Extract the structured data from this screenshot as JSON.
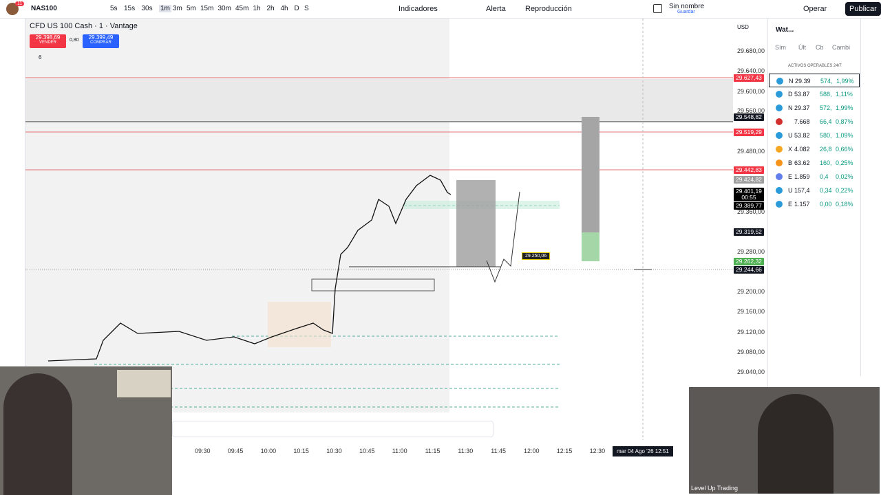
{
  "toolbar": {
    "notifications": "11",
    "symbol": "NAS100",
    "intervals": [
      "5s",
      "15s",
      "30s",
      "1m",
      "3m",
      "5m",
      "15m",
      "30m",
      "45m",
      "1h",
      "2h",
      "4h",
      "D",
      "S"
    ],
    "indicators": "Indicadores",
    "alert": "Alerta",
    "replay": "Reproducción",
    "layout_name": "Sin nombre",
    "layout_status": "Guardar",
    "trade": "Operar",
    "publish": "Publicar"
  },
  "chart": {
    "title": "CFD US 100 Cash · 1 · Vantage",
    "sell": {
      "price": "29.398,69",
      "label": "VENDER"
    },
    "spread": "0,80",
    "buy": {
      "price": "29.399,49",
      "label": "COMPRAR"
    },
    "indicators_count": "6",
    "currency": "USD",
    "price_axis": [
      "29.680,00",
      "29.640,00",
      "29.600,00",
      "29.560,00",
      "29.480,00",
      "29.360,00",
      "29.280,00",
      "29.200,00",
      "29.160,00",
      "29.120,00",
      "29.080,00",
      "29.040,00"
    ],
    "price_tags": [
      "29.627,43",
      "29.548,82",
      "29.519,29",
      "29.442,83",
      "29.424,82",
      "29.401,19",
      "00:55",
      "29.389,77",
      "29.319,52",
      "29.262,32",
      "29.244,66"
    ],
    "chart_label": "29.250,06",
    "time_axis": [
      "09:30",
      "09:45",
      "10:00",
      "10:15",
      "10:30",
      "10:45",
      "11:00",
      "11:15",
      "11:30",
      "11:45",
      "12:00",
      "12:15",
      "12:30"
    ],
    "cursor_time": "mar 04 Ago '26  12:51"
  },
  "watchlist": {
    "title": "Wat...",
    "columns": [
      "Sím",
      "Últ",
      "Cb",
      "Cambi"
    ],
    "section": "ACTIVOS OPERABLES 24/7",
    "rows": [
      [
        "N",
        "29.39",
        "574,",
        "1,99%"
      ],
      [
        "D",
        "53.87",
        "588,",
        "1,11%"
      ],
      [
        "N",
        "29.37",
        "572,",
        "1,99%"
      ],
      [
        "",
        "7.668",
        "66,4",
        "0,87%"
      ],
      [
        "U",
        "53.82",
        "580,",
        "1,09%"
      ],
      [
        "X",
        "4.082",
        "26,8",
        "0,66%"
      ],
      [
        "B",
        "63.62",
        "160,",
        "0,25%"
      ],
      [
        "E",
        "1.859",
        "0,4",
        "0,02%"
      ],
      [
        "U",
        "157,4",
        "0,34",
        "0,22%"
      ],
      [
        "E",
        "1.157",
        "0,00",
        "0,18%"
      ]
    ]
  },
  "webcam": {
    "caption": "Level Up Trading"
  }
}
